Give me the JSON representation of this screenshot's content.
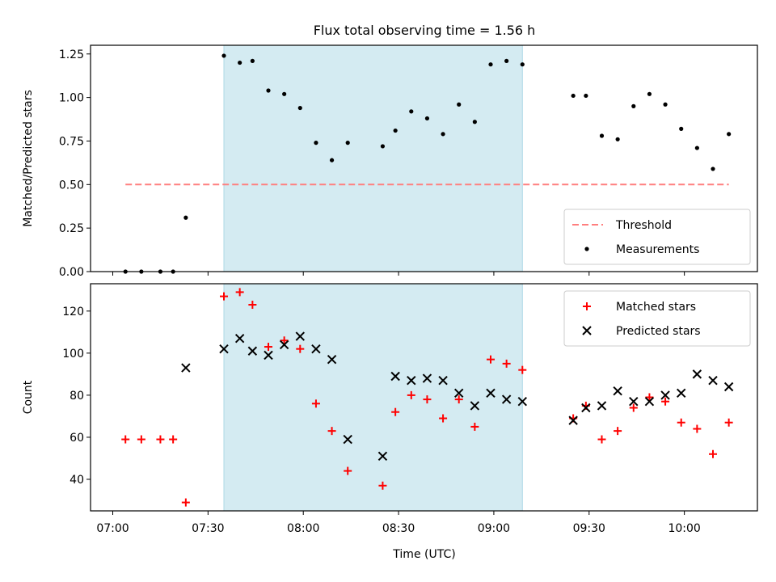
{
  "title": "Flux total observing time = 1.56 h",
  "xlabel": "Time (UTC)",
  "x_ticks": [
    "07:00",
    "07:30",
    "08:00",
    "08:30",
    "09:00",
    "09:30",
    "10:00"
  ],
  "colors": {
    "shade": "#add8e6",
    "threshold": "#ff7f7f",
    "measurement": "#000000",
    "matched": "#ff0000",
    "predicted": "#000000"
  },
  "chart_data": [
    {
      "type": "scatter",
      "ylabel": "Matched/Predicted stars",
      "ylim": [
        0,
        1.3
      ],
      "y_ticks": [
        "0.00",
        "0.25",
        "0.50",
        "0.75",
        "1.00",
        "1.25"
      ],
      "xlim": [
        "06:53",
        "10:23"
      ],
      "shaded_x_range": [
        "07:35",
        "09:09"
      ],
      "threshold": {
        "name": "Threshold",
        "y": 0.5,
        "x_range": [
          "07:04",
          "10:14"
        ]
      },
      "legend_position": "lower-right",
      "series": [
        {
          "name": "Measurements",
          "marker": "dot",
          "points": [
            [
              "07:04",
              0.0
            ],
            [
              "07:09",
              0.0
            ],
            [
              "07:15",
              0.0
            ],
            [
              "07:19",
              0.0
            ],
            [
              "07:23",
              0.31
            ],
            [
              "07:35",
              1.24
            ],
            [
              "07:40",
              1.2
            ],
            [
              "07:44",
              1.21
            ],
            [
              "07:49",
              1.04
            ],
            [
              "07:54",
              1.02
            ],
            [
              "07:59",
              0.94
            ],
            [
              "08:04",
              0.74
            ],
            [
              "08:09",
              0.64
            ],
            [
              "08:14",
              0.74
            ],
            [
              "08:25",
              0.72
            ],
            [
              "08:29",
              0.81
            ],
            [
              "08:34",
              0.92
            ],
            [
              "08:39",
              0.88
            ],
            [
              "08:44",
              0.79
            ],
            [
              "08:49",
              0.96
            ],
            [
              "08:54",
              0.86
            ],
            [
              "08:59",
              1.19
            ],
            [
              "09:04",
              1.21
            ],
            [
              "09:09",
              1.19
            ],
            [
              "09:25",
              1.01
            ],
            [
              "09:29",
              1.01
            ],
            [
              "09:34",
              0.78
            ],
            [
              "09:39",
              0.76
            ],
            [
              "09:44",
              0.95
            ],
            [
              "09:49",
              1.02
            ],
            [
              "09:54",
              0.96
            ],
            [
              "09:59",
              0.82
            ],
            [
              "10:04",
              0.71
            ],
            [
              "10:09",
              0.59
            ],
            [
              "10:14",
              0.79
            ]
          ]
        }
      ]
    },
    {
      "type": "scatter",
      "ylabel": "Count",
      "ylim": [
        25,
        133
      ],
      "y_ticks": [
        "40",
        "60",
        "80",
        "100",
        "120"
      ],
      "xlim": [
        "06:53",
        "10:23"
      ],
      "shaded_x_range": [
        "07:35",
        "09:09"
      ],
      "legend_position": "top-right",
      "series": [
        {
          "name": "Matched stars",
          "marker": "plus",
          "points": [
            [
              "07:04",
              59
            ],
            [
              "07:09",
              59
            ],
            [
              "07:15",
              59
            ],
            [
              "07:19",
              59
            ],
            [
              "07:23",
              29
            ],
            [
              "07:35",
              127
            ],
            [
              "07:40",
              129
            ],
            [
              "07:44",
              123
            ],
            [
              "07:49",
              103
            ],
            [
              "07:54",
              106
            ],
            [
              "07:59",
              102
            ],
            [
              "08:04",
              76
            ],
            [
              "08:09",
              63
            ],
            [
              "08:14",
              44
            ],
            [
              "08:25",
              37
            ],
            [
              "08:29",
              72
            ],
            [
              "08:34",
              80
            ],
            [
              "08:39",
              78
            ],
            [
              "08:44",
              69
            ],
            [
              "08:49",
              78
            ],
            [
              "08:54",
              65
            ],
            [
              "08:59",
              97
            ],
            [
              "09:04",
              95
            ],
            [
              "09:09",
              92
            ],
            [
              "09:25",
              69
            ],
            [
              "09:29",
              75
            ],
            [
              "09:34",
              59
            ],
            [
              "09:39",
              63
            ],
            [
              "09:44",
              74
            ],
            [
              "09:49",
              79
            ],
            [
              "09:54",
              77
            ],
            [
              "09:59",
              67
            ],
            [
              "10:04",
              64
            ],
            [
              "10:09",
              52
            ],
            [
              "10:14",
              67
            ]
          ]
        },
        {
          "name": "Predicted stars",
          "marker": "x",
          "points": [
            [
              "07:23",
              93
            ],
            [
              "07:35",
              102
            ],
            [
              "07:40",
              107
            ],
            [
              "07:44",
              101
            ],
            [
              "07:49",
              99
            ],
            [
              "07:54",
              104
            ],
            [
              "07:59",
              108
            ],
            [
              "08:04",
              102
            ],
            [
              "08:09",
              97
            ],
            [
              "08:14",
              59
            ],
            [
              "08:25",
              51
            ],
            [
              "08:29",
              89
            ],
            [
              "08:34",
              87
            ],
            [
              "08:39",
              88
            ],
            [
              "08:44",
              87
            ],
            [
              "08:49",
              81
            ],
            [
              "08:54",
              75
            ],
            [
              "08:59",
              81
            ],
            [
              "09:04",
              78
            ],
            [
              "09:09",
              77
            ],
            [
              "09:25",
              68
            ],
            [
              "09:29",
              74
            ],
            [
              "09:34",
              75
            ],
            [
              "09:39",
              82
            ],
            [
              "09:44",
              77
            ],
            [
              "09:49",
              77
            ],
            [
              "09:54",
              80
            ],
            [
              "09:59",
              81
            ],
            [
              "10:04",
              90
            ],
            [
              "10:09",
              87
            ],
            [
              "10:14",
              84
            ]
          ]
        }
      ]
    }
  ]
}
